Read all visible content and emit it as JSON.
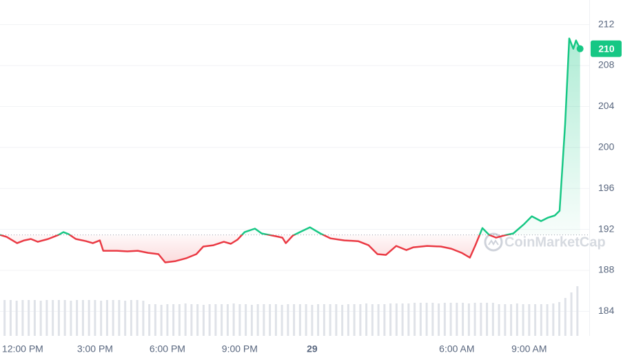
{
  "chart_data": {
    "type": "line",
    "x": [
      -0.94,
      -0.66,
      -0.23,
      0.06,
      0.34,
      0.63,
      1.06,
      1.49,
      1.69,
      1.91,
      2.2,
      2.63,
      2.91,
      3.2,
      3.34,
      3.91,
      4.34,
      4.77,
      5.2,
      5.63,
      5.91,
      6.34,
      6.77,
      7.2,
      7.49,
      7.91,
      8.34,
      8.63,
      8.91,
      9.2,
      9.63,
      9.91,
      10.49,
      10.77,
      10.91,
      11.2,
      11.49,
      11.91,
      12.34,
      12.77,
      13.34,
      13.91,
      14.34,
      14.71,
      15.06,
      15.49,
      15.91,
      16.2,
      16.77,
      17.34,
      17.77,
      18.2,
      18.54,
      18.77,
      19.06,
      19.34,
      19.63,
      20.06,
      20.34,
      20.77,
      21.11,
      21.49,
      21.77,
      22.06,
      22.26,
      22.49,
      22.66,
      22.83,
      22.94,
      23.11
    ],
    "values": [
      191.46,
      191.26,
      190.65,
      190.92,
      191.06,
      190.79,
      191.06,
      191.46,
      191.73,
      191.53,
      191.06,
      190.85,
      190.65,
      190.92,
      189.91,
      189.91,
      189.85,
      189.91,
      189.71,
      189.58,
      188.77,
      188.9,
      189.17,
      189.58,
      190.32,
      190.45,
      190.79,
      190.59,
      191.0,
      191.73,
      192.07,
      191.6,
      191.33,
      191.19,
      190.65,
      191.39,
      191.73,
      192.2,
      191.6,
      191.12,
      190.92,
      190.85,
      190.45,
      189.58,
      189.51,
      190.38,
      189.98,
      190.25,
      190.38,
      190.32,
      190.11,
      189.71,
      189.24,
      190.45,
      192.13,
      191.46,
      191.19,
      191.46,
      191.6,
      192.47,
      193.28,
      192.81,
      193.14,
      193.35,
      193.82,
      202.24,
      210.65,
      209.64,
      210.45,
      209.64
    ],
    "baseline": 191.46,
    "price_label": "210",
    "up_color": "#16c784",
    "down_color": "#ea3943",
    "volume": {
      "color": "#dfe2e8",
      "x": [
        -0.75,
        -0.5,
        -0.25,
        0,
        0.25,
        0.5,
        0.75,
        1,
        1.25,
        1.5,
        1.75,
        2,
        2.25,
        2.5,
        2.75,
        3,
        3.25,
        3.5,
        3.75,
        4,
        4.25,
        4.5,
        4.75,
        5,
        5.25,
        5.5,
        5.75,
        6,
        6.25,
        6.5,
        6.75,
        7,
        7.25,
        7.5,
        7.75,
        8,
        8.25,
        8.5,
        8.75,
        9,
        9.25,
        9.5,
        9.75,
        10,
        10.25,
        10.5,
        10.75,
        11,
        11.25,
        11.5,
        11.75,
        12,
        12.25,
        12.5,
        12.75,
        13,
        13.25,
        13.5,
        13.75,
        14,
        14.25,
        14.5,
        14.75,
        15,
        15.25,
        15.5,
        15.75,
        16,
        16.25,
        16.5,
        16.75,
        17,
        17.25,
        17.5,
        17.75,
        18,
        18.25,
        18.5,
        18.75,
        19,
        19.25,
        19.5,
        19.75,
        20,
        20.25,
        20.5,
        20.75,
        21,
        21.25,
        21.5,
        21.75,
        22,
        22.25,
        22.5,
        22.75,
        23
      ],
      "values": [
        52,
        52,
        51,
        52,
        52,
        52,
        51,
        52,
        52,
        52,
        52,
        51,
        52,
        52,
        52,
        52,
        51,
        52,
        52,
        52,
        51,
        52,
        52,
        51,
        46,
        46,
        45,
        46,
        46,
        46,
        47,
        46,
        46,
        45,
        46,
        46,
        46,
        46,
        47,
        46,
        46,
        45,
        46,
        46,
        46,
        46,
        45,
        46,
        46,
        46,
        46,
        45,
        46,
        46,
        46,
        46,
        45,
        46,
        46,
        46,
        47,
        46,
        46,
        46,
        47,
        47,
        47,
        47,
        48,
        48,
        48,
        48,
        47,
        48,
        48,
        48,
        48,
        47,
        48,
        48,
        48,
        48,
        46,
        46,
        46,
        47,
        46,
        46,
        46,
        46,
        46,
        47,
        49,
        55,
        63,
        72
      ]
    },
    "xlim": [
      -0.94,
      23.49
    ],
    "ylim": [
      181.6,
      214.4
    ],
    "yticks": [
      184,
      188,
      192,
      196,
      200,
      204,
      208,
      212
    ],
    "xticks": [
      {
        "value": 0,
        "label": "12:00 PM"
      },
      {
        "value": 3,
        "label": "3:00 PM"
      },
      {
        "value": 6,
        "label": "6:00 PM"
      },
      {
        "value": 9,
        "label": "9:00 PM"
      },
      {
        "value": 12,
        "label": "29"
      },
      {
        "value": 18,
        "label": "6:00 AM"
      },
      {
        "value": 21,
        "label": "9:00 AM"
      }
    ],
    "grid": true,
    "watermark": "CoinMarketCap"
  }
}
